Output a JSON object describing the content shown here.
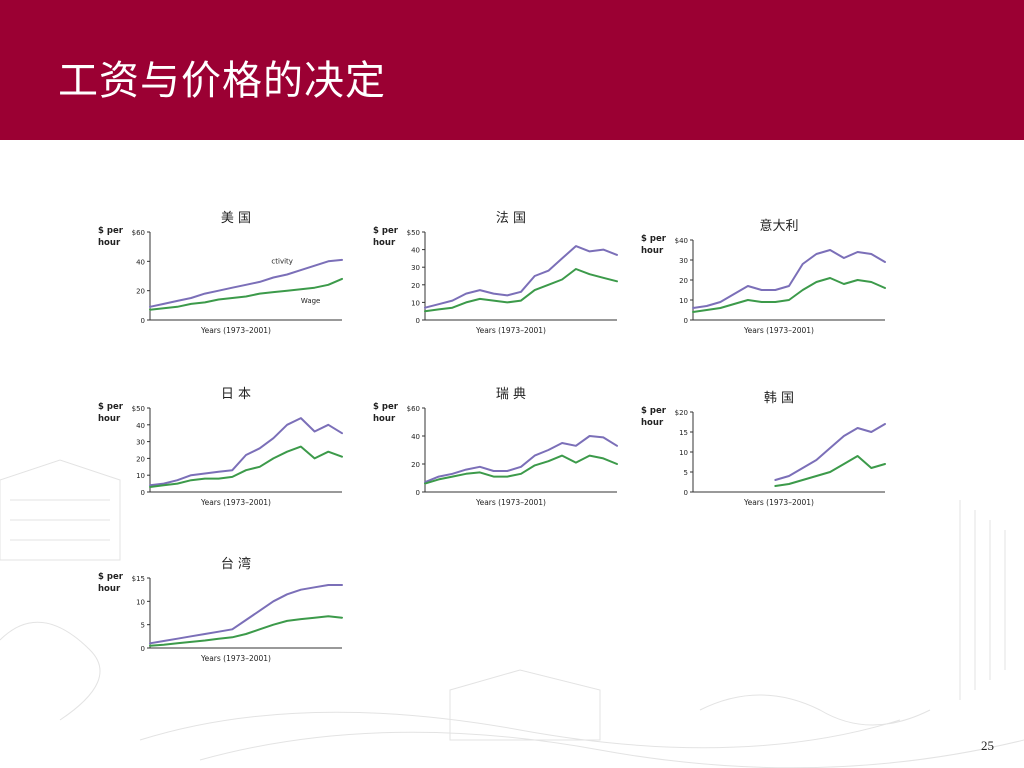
{
  "slide": {
    "title": "工资与价格的决定",
    "page_number": "25"
  },
  "colors": {
    "header": "#9b0033",
    "productivity_line": "#7b6fb8",
    "wage_line": "#3c9a4a",
    "axis": "#333333"
  },
  "chart_data": [
    {
      "type": "line",
      "title": "美 国",
      "ylabel": "$ per hour",
      "xlabel": "Years (1973–2001)",
      "ylim": [
        0,
        60
      ],
      "yticks": [
        "0",
        "20",
        "40",
        "$60"
      ],
      "x": [
        1973,
        1975,
        1977,
        1979,
        1981,
        1983,
        1985,
        1987,
        1989,
        1991,
        1993,
        1995,
        1997,
        1999,
        2001
      ],
      "series": [
        {
          "name": "ctivity",
          "values": [
            9,
            11,
            13,
            15,
            18,
            20,
            22,
            24,
            26,
            29,
            31,
            34,
            37,
            40,
            41
          ]
        },
        {
          "name": "Wage",
          "values": [
            7,
            8,
            9,
            11,
            12,
            14,
            15,
            16,
            18,
            19,
            20,
            21,
            22,
            24,
            28
          ]
        }
      ]
    },
    {
      "type": "line",
      "title": "法 国",
      "ylabel": "$ per hour",
      "xlabel": "Years (1973–2001)",
      "ylim": [
        0,
        50
      ],
      "yticks": [
        "0",
        "10",
        "20",
        "30",
        "40",
        "$50"
      ],
      "x": [
        1973,
        1975,
        1977,
        1979,
        1981,
        1983,
        1985,
        1987,
        1989,
        1991,
        1993,
        1995,
        1997,
        1999,
        2001
      ],
      "series": [
        {
          "values": [
            7,
            9,
            11,
            15,
            17,
            15,
            14,
            16,
            25,
            28,
            35,
            42,
            39,
            40,
            37
          ]
        },
        {
          "values": [
            5,
            6,
            7,
            10,
            12,
            11,
            10,
            11,
            17,
            20,
            23,
            29,
            26,
            24,
            22
          ]
        }
      ]
    },
    {
      "type": "line",
      "title": "意大利",
      "ylabel": "$ per hour",
      "xlabel": "Years (1973–2001)",
      "ylim": [
        0,
        40
      ],
      "yticks": [
        "0",
        "10",
        "20",
        "30",
        "$40"
      ],
      "x": [
        1973,
        1975,
        1977,
        1979,
        1981,
        1983,
        1985,
        1987,
        1989,
        1991,
        1993,
        1995,
        1997,
        1999,
        2001
      ],
      "series": [
        {
          "values": [
            6,
            7,
            9,
            13,
            17,
            15,
            15,
            17,
            28,
            33,
            35,
            31,
            34,
            33,
            29
          ]
        },
        {
          "values": [
            4,
            5,
            6,
            8,
            10,
            9,
            9,
            10,
            15,
            19,
            21,
            18,
            20,
            19,
            16
          ]
        }
      ]
    },
    {
      "type": "line",
      "title": "日 本",
      "ylabel": "$ per hour",
      "xlabel": "Years (1973–2001)",
      "ylim": [
        0,
        50
      ],
      "yticks": [
        "0",
        "10",
        "20",
        "30",
        "40",
        "$50"
      ],
      "x": [
        1973,
        1975,
        1977,
        1979,
        1981,
        1983,
        1985,
        1987,
        1989,
        1991,
        1993,
        1995,
        1997,
        1999,
        2001
      ],
      "series": [
        {
          "values": [
            4,
            5,
            7,
            10,
            11,
            12,
            13,
            22,
            26,
            32,
            40,
            44,
            36,
            40,
            35
          ]
        },
        {
          "values": [
            3,
            4,
            5,
            7,
            8,
            8,
            9,
            13,
            15,
            20,
            24,
            27,
            20,
            24,
            21
          ]
        }
      ]
    },
    {
      "type": "line",
      "title": "瑞 典",
      "ylabel": "$ per hour",
      "xlabel": "Years (1973–2001)",
      "ylim": [
        0,
        60
      ],
      "yticks": [
        "0",
        "20",
        "40",
        "$60"
      ],
      "x": [
        1973,
        1975,
        1977,
        1979,
        1981,
        1983,
        1985,
        1987,
        1989,
        1991,
        1993,
        1995,
        1997,
        1999,
        2001
      ],
      "series": [
        {
          "values": [
            7,
            11,
            13,
            16,
            18,
            15,
            15,
            18,
            26,
            30,
            35,
            33,
            40,
            39,
            33
          ]
        },
        {
          "values": [
            6,
            9,
            11,
            13,
            14,
            11,
            11,
            13,
            19,
            22,
            26,
            21,
            26,
            24,
            20
          ]
        }
      ]
    },
    {
      "type": "line",
      "title": "韩 国",
      "ylabel": "$ per hour",
      "xlabel": "Years (1973–2001)",
      "ylim": [
        0,
        20
      ],
      "yticks": [
        "0",
        "5",
        "10",
        "15",
        "$20"
      ],
      "x": [
        1985,
        1987,
        1989,
        1991,
        1993,
        1995,
        1997,
        1999,
        2001
      ],
      "series": [
        {
          "values": [
            3,
            4,
            6,
            8,
            11,
            14,
            16,
            15,
            17
          ]
        },
        {
          "values": [
            1.5,
            2,
            3,
            4,
            5,
            7,
            9,
            6,
            7
          ]
        }
      ]
    },
    {
      "type": "line",
      "title": "台 湾",
      "ylabel": "$ per hour",
      "xlabel": "Years (1973–2001)",
      "ylim": [
        0,
        15
      ],
      "yticks": [
        "0",
        "5",
        "10",
        "$15"
      ],
      "x": [
        1973,
        1975,
        1977,
        1979,
        1981,
        1983,
        1985,
        1987,
        1989,
        1991,
        1993,
        1995,
        1997,
        1999,
        2001
      ],
      "series": [
        {
          "values": [
            1,
            1.5,
            2,
            2.5,
            3,
            3.5,
            4,
            6,
            8,
            10,
            11.5,
            12.5,
            13,
            13.5,
            13.5
          ]
        },
        {
          "values": [
            0.5,
            0.7,
            1,
            1.3,
            1.6,
            2,
            2.3,
            3,
            4,
            5,
            5.8,
            6.2,
            6.5,
            6.8,
            6.5
          ]
        }
      ]
    }
  ]
}
